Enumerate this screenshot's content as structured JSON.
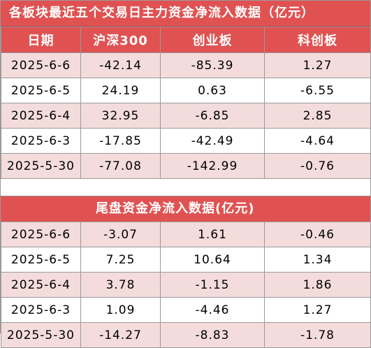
{
  "section1": {
    "title": "各板块最近五个交易日主力资金净流入数据（亿元）",
    "headers": [
      "日期",
      "沪深300",
      "创业板",
      "科创板"
    ],
    "rows": [
      [
        "2025-6-6",
        "-42.14",
        "-85.39",
        "1.27"
      ],
      [
        "2025-6-5",
        "24.19",
        "0.63",
        "-6.55"
      ],
      [
        "2025-6-4",
        "32.95",
        "-6.85",
        "2.85"
      ],
      [
        "2025-6-3",
        "-17.85",
        "-42.49",
        "-4.64"
      ],
      [
        "2025-5-30",
        "-77.08",
        "-142.99",
        "-0.76"
      ]
    ]
  },
  "section2": {
    "title": "尾盘资金净流入数据(亿元)",
    "rows": [
      [
        "2025-6-6",
        "-3.07",
        "1.61",
        "-0.46"
      ],
      [
        "2025-6-5",
        "7.25",
        "10.64",
        "1.34"
      ],
      [
        "2025-6-4",
        "3.78",
        "-1.15",
        "1.86"
      ],
      [
        "2025-6-3",
        "1.09",
        "-4.46",
        "1.27"
      ],
      [
        "2025-5-30",
        "-14.27",
        "-8.83",
        "-1.78"
      ]
    ]
  },
  "colors": {
    "header_red": "#e05252",
    "row_pink": "#f3dcdb",
    "row_white": "#ffffff"
  }
}
